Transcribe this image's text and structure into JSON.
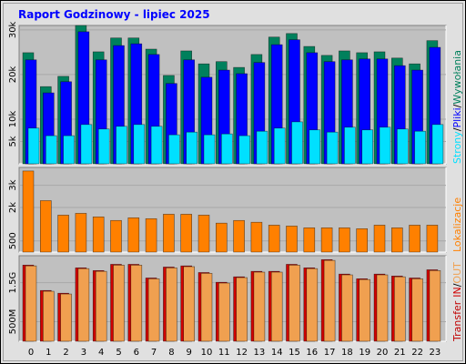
{
  "chart_data": [
    {
      "type": "bar",
      "title": "Raport Godzinowy -  lipiec 2025",
      "ylim": [
        0,
        31000
      ],
      "yticks": [
        {
          "value": 5000,
          "label": "5k"
        },
        {
          "value": 10000,
          "label": "10k"
        },
        {
          "value": 20000,
          "label": "20k"
        },
        {
          "value": 30000,
          "label": "30k"
        }
      ],
      "grid": true,
      "separator": "/",
      "series": [
        {
          "name": "Wywołania",
          "color": "#00805c",
          "values": [
            24900,
            17300,
            19600,
            31000,
            25100,
            28200,
            28200,
            25700,
            19800,
            25300,
            22400,
            22900,
            21600,
            24500,
            28400,
            29200,
            26300,
            24300,
            25300,
            24900,
            25100,
            23700,
            22400,
            27600
          ]
        },
        {
          "name": "Pliki",
          "color": "#0000ff",
          "values": [
            23300,
            15900,
            18400,
            29600,
            23300,
            26500,
            26900,
            24500,
            18000,
            23300,
            19400,
            21000,
            20200,
            22700,
            26700,
            27800,
            24900,
            22900,
            23300,
            23500,
            23500,
            22000,
            21000,
            26100
          ]
        },
        {
          "name": "Strony",
          "color": "#00e0ff",
          "values": [
            8000,
            6300,
            6300,
            8800,
            7800,
            8400,
            8800,
            8400,
            6500,
            7100,
            6500,
            6700,
            6300,
            7300,
            8000,
            9400,
            7600,
            7100,
            8200,
            7600,
            8200,
            7800,
            7300,
            8800
          ]
        }
      ]
    },
    {
      "type": "bar",
      "ylim": [
        0,
        3800
      ],
      "yticks": [
        {
          "value": 500,
          "label": "500"
        },
        {
          "value": 2000,
          "label": "2k"
        },
        {
          "value": 3000,
          "label": "3k"
        }
      ],
      "grid": true,
      "series": [
        {
          "name": "Lokalizacje",
          "color": "#ff8000",
          "values": [
            3640,
            2310,
            1660,
            1740,
            1580,
            1420,
            1540,
            1500,
            1700,
            1700,
            1660,
            1300,
            1420,
            1340,
            1210,
            1170,
            1090,
            1090,
            1090,
            1050,
            1210,
            1090,
            1210,
            1210
          ]
        }
      ]
    },
    {
      "type": "bar",
      "categories": [
        "0",
        "1",
        "2",
        "3",
        "4",
        "5",
        "6",
        "7",
        "8",
        "9",
        "10",
        "11",
        "12",
        "13",
        "14",
        "15",
        "16",
        "17",
        "18",
        "19",
        "20",
        "21",
        "22",
        "23"
      ],
      "ylim": [
        0,
        2190
      ],
      "yticks": [
        {
          "value": 500,
          "label": "500M"
        },
        {
          "value": 1500,
          "label": "1.5G"
        }
      ],
      "grid": true,
      "y_label": "Transfer",
      "y_label_color": "#c00000",
      "separator": "/",
      "series": [
        {
          "name": "IN",
          "color": "#d00000",
          "values": [
            1950,
            1300,
            1230,
            1880,
            1810,
            1970,
            1970,
            1620,
            1900,
            1930,
            1760,
            1510,
            1650,
            1790,
            1790,
            1970,
            1880,
            2090,
            1720,
            1600,
            1720,
            1670,
            1620,
            1830
          ]
        },
        {
          "name": "OUT",
          "color": "#f0a050",
          "values": [
            1930,
            1280,
            1210,
            1860,
            1790,
            1950,
            1950,
            1600,
            1880,
            1910,
            1740,
            1490,
            1630,
            1770,
            1770,
            1950,
            1860,
            2070,
            1700,
            1580,
            1700,
            1650,
            1600,
            1810
          ]
        }
      ]
    }
  ]
}
